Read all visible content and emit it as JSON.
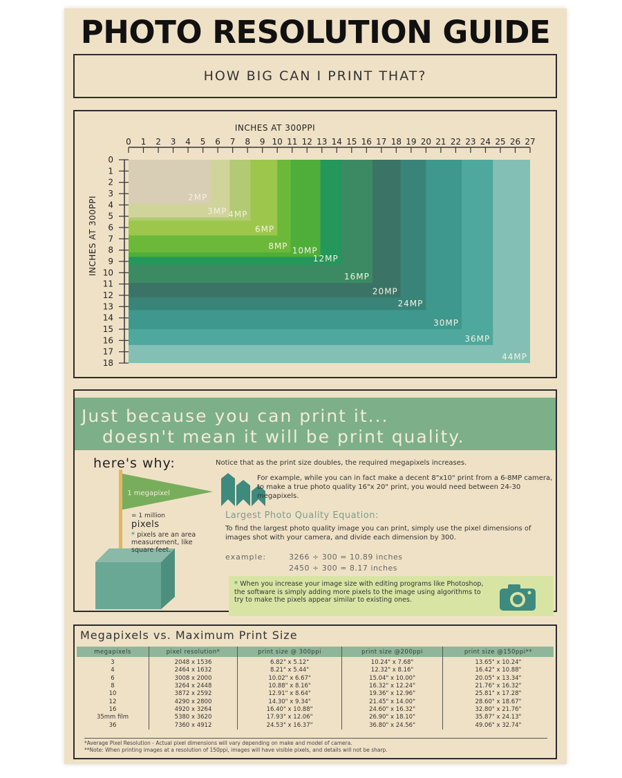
{
  "title": "PHOTO RESOLUTION GUIDE",
  "subtitle": "HOW BIG CAN I PRINT THAT?",
  "chart": {
    "x_axis_label": "INCHES AT 300PPI",
    "y_axis_label": "INCHES AT 300PPI",
    "x_ticks": [
      "0",
      "1",
      "2",
      "3",
      "4",
      "5",
      "6",
      "7",
      "8",
      "9",
      "10",
      "11",
      "12",
      "13",
      "14",
      "15",
      "16",
      "17",
      "18",
      "19",
      "20",
      "21",
      "22",
      "23",
      "24",
      "25",
      "26",
      "27"
    ],
    "y_ticks": [
      "0",
      "1",
      "2",
      "3",
      "4",
      "5",
      "6",
      "7",
      "8",
      "9",
      "10",
      "11",
      "12",
      "13",
      "14",
      "15",
      "16",
      "17",
      "18"
    ],
    "x_max": 27,
    "y_max": 18,
    "regions": [
      {
        "label": "44MP",
        "width_in": 27,
        "height_in": 18,
        "color": "#84bfb5"
      },
      {
        "label": "36MP",
        "width_in": 24.5,
        "height_in": 16.4,
        "color": "#4ea89d"
      },
      {
        "label": "30MP",
        "width_in": 22.4,
        "height_in": 15,
        "color": "#3e988e"
      },
      {
        "label": "24MP",
        "width_in": 20,
        "height_in": 13.3,
        "color": "#398479"
      },
      {
        "label": "20MP",
        "width_in": 18.3,
        "height_in": 12.2,
        "color": "#3b7466"
      },
      {
        "label": "16MP",
        "width_in": 16.4,
        "height_in": 10.9,
        "color": "#3b8a63"
      },
      {
        "label": "12MP",
        "width_in": 14.3,
        "height_in": 9.3,
        "color": "#24975a"
      },
      {
        "label": "10MP",
        "width_in": 12.9,
        "height_in": 8.6,
        "color": "#4fae3a"
      },
      {
        "label": "8MP",
        "width_in": 10.9,
        "height_in": 8.2,
        "color": "#6cb93a"
      },
      {
        "label": "6MP",
        "width_in": 10,
        "height_in": 6.7,
        "color": "#9cc74c"
      },
      {
        "label": "4MP",
        "width_in": 8.2,
        "height_in": 5.4,
        "color": "#b2ca74"
      },
      {
        "label": "3MP",
        "width_in": 6.8,
        "height_in": 5.1,
        "color": "#d1d49a"
      },
      {
        "label": "2MP",
        "width_in": 5.5,
        "height_in": 3.9,
        "color": "#d8cdb5"
      }
    ]
  },
  "banner": {
    "line1": "Just because you can print it...",
    "line2": "doesn't mean it will be print quality."
  },
  "why": {
    "heading": "here's why:",
    "notice": "Notice that as the print size doubles, the required megapixels increases.",
    "example_paragraph": "For example, while you can in fact make a decent 8\"x10\" print from a 6-8MP camera, to make a true photo quality 16\"x 20\" print, you would need between 24-30 megapixels.",
    "megapixel_flag": "1 megapixel",
    "million": "= 1 million",
    "pixels": "pixels",
    "pixels_note": "pixels are an area measurement, like square feet.",
    "equation_title": "Largest Photo Quality Equation:",
    "equation_paragraph": "To find the largest photo quality image you can print, simply use the pixel dimensions of images shot with your camera, and divide each dimension by 300.",
    "example_label": "example:",
    "example1": "3266 ÷ 300 = 10.89 inches",
    "example2": "2450 ÷ 300 = 8.17 inches",
    "note": "When you increase your image size with editing programs like Photoshop, the software is simply adding more pixels to the image using algorithms to try to make the pixels appear similar to existing ones."
  },
  "table": {
    "title": "Megapixels vs. Maximum Print Size",
    "headers": [
      "megapixels",
      "pixel resolution*",
      "print size @ 300ppi",
      "print size @200ppi",
      "print size @150ppi**"
    ],
    "rows": [
      [
        "3",
        "2048 x 1536",
        "6.82\" x 5.12\"",
        "10.24\" x 7.68\"",
        "13.65\" x 10.24\""
      ],
      [
        "4",
        "2464 x 1632",
        "8.21\" x 5.44\"",
        "12.32\" x 8.16\"",
        "16.42\" x 10.88\""
      ],
      [
        "6",
        "3008 x 2000",
        "10.02\" x 6.67\"",
        "15.04\" x 10.00\"",
        "20.05\" x 13.34\""
      ],
      [
        "8",
        "3264 x 2448",
        "10.88\" x 8.16\"",
        "16.32\" x 12.24\"",
        "21.76\" x 16.32\""
      ],
      [
        "10",
        "3872 x 2592",
        "12.91\" x 8.64\"",
        "19.36\" x 12.96\"",
        "25.81\" x 17.28\""
      ],
      [
        "12",
        "4290 x 2800",
        "14.30\" x 9.34\"",
        "21.45\" x 14.00\"",
        "28.60\" x 18.67\""
      ],
      [
        "16",
        "4920 x 3264",
        "16.40\" x 10.88\"",
        "24.60\" x 16.32\"",
        "32.80\" x 21.76\""
      ],
      [
        "35mm film",
        "5380 x 3620",
        "17.93\" x 12.06\"",
        "26.90\" x 18.10\"",
        "35.87\" x 24.13\""
      ],
      [
        "36",
        "7360 x 4912",
        "24.53\" x 16.37\"",
        "36.80\" x 24.56\"",
        "49.06\" x 32.74\""
      ]
    ],
    "footnote1": "*Average Pixel Resolution - Actual pixel dimensions will vary depending on make and model of camera.",
    "footnote2": "**Note: When printing images at a resolution of 150ppi, images will have visible pixels, and details will not be sharp."
  },
  "colors": {
    "poster_bg": "#efe1c6",
    "banner": "#7daf89",
    "note_bg": "#d8e4a4",
    "accent": "#4aa38a"
  }
}
